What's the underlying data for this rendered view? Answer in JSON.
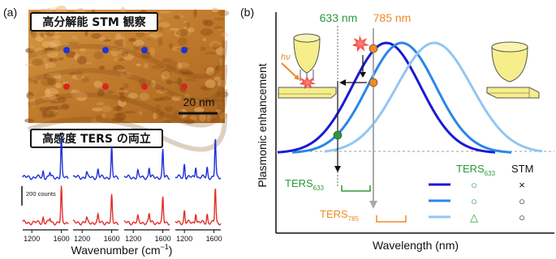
{
  "panel_a": {
    "label": "(a)",
    "stm_title": "高分解能 STM 観察",
    "scale_bar": "20 nm",
    "ters_title": "高感度 TERS の両立",
    "counts_label": "200 counts",
    "tick_labels": [
      "1200",
      "1600",
      "1200",
      "1600",
      "1200",
      "1600",
      "1200",
      "1600"
    ],
    "xlabel_main": "Wavenumber (cm",
    "xlabel_sup": "−1",
    "xlabel_end": ")",
    "colors": {
      "blue_spectra": "#1f2fd8",
      "red_spectra": "#e0302a",
      "stm_image": "#c98530"
    }
  },
  "panel_b": {
    "label": "(b)",
    "wl_633": "633 nm",
    "wl_785": "785 nm",
    "hv": "hν",
    "ylabel": "Plasmonic enhancement",
    "xlabel": "Wavelength (nm)",
    "ters633_main": "TERS",
    "ters633_sub": "633",
    "ters785_main": "TERS",
    "ters785_sub": "785",
    "table_header_ters_main": "TERS",
    "table_header_ters_sub": "633",
    "table_header_stm": "STM",
    "table_rows": [
      {
        "ters": "○",
        "stm": "×"
      },
      {
        "ters": "○",
        "stm": "○"
      },
      {
        "ters": "△",
        "stm": "○"
      }
    ],
    "colors": {
      "dark_blue": "#1a1ad4",
      "mid_blue": "#2a86e8",
      "light_blue": "#93c6f2",
      "green": "#2b9a3a",
      "orange": "#f08a24",
      "tip_yellow": "#f6ee8a"
    }
  }
}
